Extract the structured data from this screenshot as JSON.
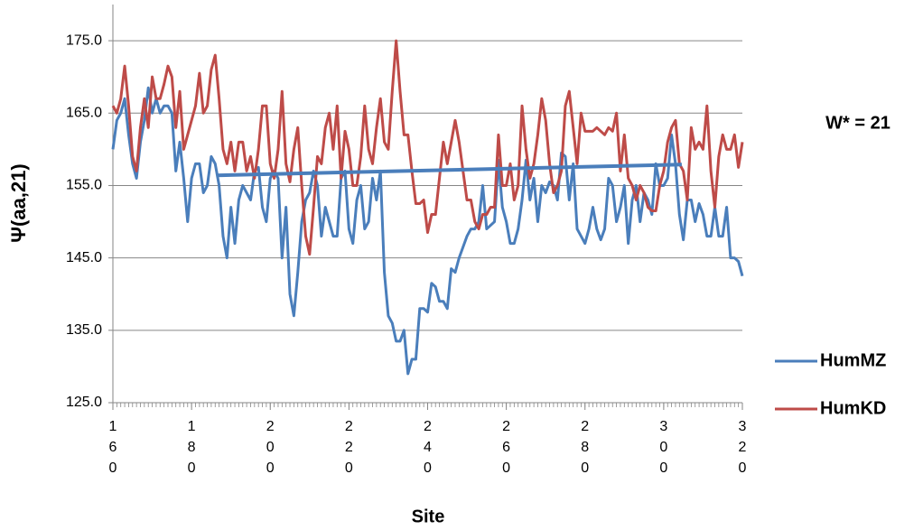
{
  "chart_data": {
    "type": "line",
    "y_label": "Ψ(aa,21)",
    "x_label": "Site",
    "annotation": "W* = 21",
    "x": [
      160,
      161,
      162,
      163,
      164,
      165,
      166,
      167,
      168,
      169,
      170,
      171,
      172,
      173,
      174,
      175,
      176,
      177,
      178,
      179,
      180,
      181,
      182,
      183,
      184,
      185,
      186,
      187,
      188,
      189,
      190,
      191,
      192,
      193,
      194,
      195,
      196,
      197,
      198,
      199,
      200,
      201,
      202,
      203,
      204,
      205,
      206,
      207,
      208,
      209,
      210,
      211,
      212,
      213,
      214,
      215,
      216,
      217,
      218,
      219,
      220,
      221,
      222,
      223,
      224,
      225,
      226,
      227,
      228,
      229,
      230,
      231,
      232,
      233,
      234,
      235,
      236,
      237,
      238,
      239,
      240,
      241,
      242,
      243,
      244,
      245,
      246,
      247,
      248,
      249,
      250,
      251,
      252,
      253,
      254,
      255,
      256,
      257,
      258,
      259,
      260,
      261,
      262,
      263,
      264,
      265,
      266,
      267,
      268,
      269,
      270,
      271,
      272,
      273,
      274,
      275,
      276,
      277,
      278,
      279,
      280,
      281,
      282,
      283,
      284,
      285,
      286,
      287,
      288,
      289,
      290,
      291,
      292,
      293,
      294,
      295,
      296,
      297,
      298,
      299,
      300,
      301,
      302,
      303,
      304,
      305,
      306,
      307,
      308,
      309,
      310,
      311,
      312,
      313,
      314,
      315,
      316,
      317,
      318,
      319,
      320
    ],
    "series": [
      {
        "name": "HumMZ",
        "color": "#4a7ebb",
        "values": [
          160,
          164,
          165,
          167,
          162,
          158,
          156,
          161,
          164,
          168.5,
          165,
          167,
          165,
          166,
          166,
          165,
          157,
          161,
          156,
          150,
          156,
          158,
          158,
          154,
          155,
          159,
          158,
          155,
          148,
          145,
          152,
          147,
          153,
          155,
          154,
          153,
          157,
          157.5,
          152,
          150,
          156,
          157,
          156,
          145,
          152,
          140,
          137,
          143,
          150,
          153,
          154,
          157,
          155,
          148,
          152,
          150,
          148,
          148,
          156,
          157,
          149,
          147,
          153,
          155,
          149,
          150,
          156,
          153,
          157,
          143,
          137,
          136,
          133.5,
          133.5,
          135,
          129,
          131,
          131,
          138,
          138,
          137.5,
          141.5,
          141,
          139,
          139,
          138,
          143.5,
          143,
          145,
          146.5,
          148,
          149,
          149,
          150,
          155,
          149,
          149.5,
          150,
          158.5,
          152,
          150,
          147,
          147,
          149,
          153,
          158.5,
          153,
          156,
          150,
          155,
          154,
          155.5,
          155,
          153,
          159.5,
          159,
          153,
          158,
          149,
          148,
          147,
          149,
          152,
          149,
          147.5,
          149,
          156,
          155,
          150,
          152,
          155,
          147,
          153,
          155,
          150,
          154,
          153,
          151,
          158,
          155,
          155,
          156,
          162,
          158,
          151,
          147.5,
          153,
          153,
          150,
          152.5,
          151,
          148,
          148,
          152,
          148,
          148,
          152,
          145,
          145,
          144.5,
          142.5
        ]
      },
      {
        "name": "HumKD",
        "color": "#be4b48",
        "values": [
          166,
          165,
          167,
          171.5,
          166,
          159,
          157,
          163,
          167,
          163,
          170,
          167,
          167,
          169,
          171.5,
          170,
          163,
          168,
          160,
          162,
          164,
          166,
          170.5,
          165,
          166,
          171,
          173,
          167,
          160,
          158,
          161,
          157,
          161,
          161,
          157,
          159,
          156,
          160,
          166,
          166,
          158,
          156,
          160,
          168,
          158,
          155.5,
          160,
          163,
          155,
          148,
          145.5,
          152,
          159,
          158,
          163,
          165,
          160,
          166,
          156,
          162.5,
          160,
          155,
          155,
          159,
          166,
          160,
          158,
          163,
          167,
          161,
          160,
          168,
          175,
          168,
          162,
          162,
          157,
          152.5,
          152.5,
          153,
          148.5,
          151,
          151,
          156,
          161,
          158,
          161,
          164,
          161,
          157,
          153,
          153,
          150,
          149,
          151,
          151,
          152,
          152,
          162,
          155,
          155,
          158,
          153,
          155,
          166,
          160,
          156,
          158,
          162,
          167,
          164,
          158,
          154,
          155,
          157,
          166,
          168,
          163,
          158,
          165,
          162.5,
          162.5,
          162.5,
          163,
          162.5,
          162,
          163,
          162.5,
          165,
          157,
          162,
          156,
          155,
          153,
          155,
          154,
          152,
          151.5,
          151.5,
          155,
          157,
          161,
          163,
          164,
          158,
          157,
          153,
          163,
          160,
          161,
          160,
          166,
          157,
          152,
          159,
          162,
          160,
          160,
          162,
          157.5,
          161
        ]
      }
    ],
    "trend": {
      "color": "#4a7ebb",
      "x": [
        186.4,
        304.6
      ],
      "values": [
        156.4,
        157.9
      ]
    },
    "xlim": [
      160,
      320
    ],
    "xticks": [
      160,
      180,
      200,
      220,
      240,
      260,
      280,
      300,
      320
    ],
    "ylim": [
      125,
      180
    ],
    "yticks": [
      {
        "value": 125,
        "label": "125.0"
      },
      {
        "value": 135,
        "label": "135.0"
      },
      {
        "value": 145,
        "label": "145.0"
      },
      {
        "value": 155,
        "label": "155.0"
      },
      {
        "value": 165,
        "label": "165.0"
      },
      {
        "value": 175,
        "label": "175.0"
      }
    ],
    "grid": true,
    "legend": "right"
  }
}
